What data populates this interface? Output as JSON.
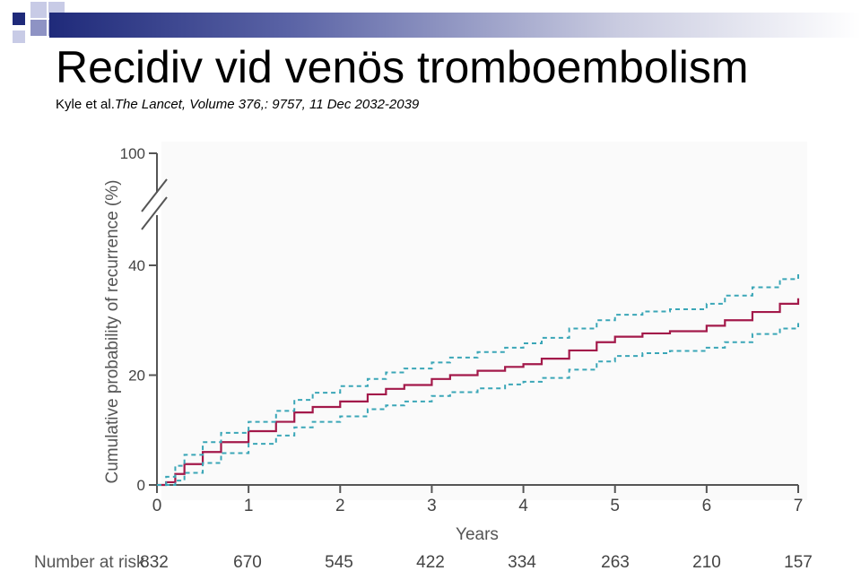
{
  "slide": {
    "title": "Recidiv vid venös tromboembolism",
    "citation_authors": "Kyle et al.",
    "citation_journal": "The Lancet, Volume 376,: 9757, 11 Dec  2032-2039"
  },
  "colors": {
    "estimate": "#a3194a",
    "ci": "#3aa6b7",
    "axis": "#555555",
    "header_dark": "#1f2a7a"
  },
  "chart_data": {
    "type": "line",
    "xlabel": "Years",
    "ylabel": "Cumulative probability of recurrence (%)",
    "xlim": [
      0,
      7
    ],
    "ylim": [
      0,
      40
    ],
    "y_axis_break": true,
    "x_ticks": [
      "0",
      "1",
      "2",
      "3",
      "4",
      "5",
      "6",
      "7"
    ],
    "y_ticks": [
      "0",
      "20",
      "40",
      "100"
    ],
    "risk_table": {
      "label": "Number at risk",
      "values": [
        "832",
        "670",
        "545",
        "422",
        "334",
        "263",
        "210",
        "157"
      ]
    },
    "series": [
      {
        "role": "estimate",
        "x": [
          0,
          0.1,
          0.2,
          0.3,
          0.5,
          0.7,
          1.0,
          1.3,
          1.5,
          1.7,
          2.0,
          2.3,
          2.5,
          2.7,
          3.0,
          3.2,
          3.5,
          3.8,
          4.0,
          4.2,
          4.5,
          4.8,
          5.0,
          5.3,
          5.6,
          6.0,
          6.2,
          6.5,
          6.8,
          7.0
        ],
        "y": [
          0,
          0.5,
          2,
          3.8,
          6,
          7.8,
          9.8,
          11.5,
          13.2,
          14.2,
          15.2,
          16.5,
          17.5,
          18.2,
          19.3,
          20,
          20.8,
          21.5,
          22,
          23,
          24.5,
          26,
          27,
          27.6,
          28,
          29,
          30,
          31.5,
          33,
          34
        ]
      },
      {
        "role": "ci-upper",
        "x": [
          0,
          0.1,
          0.2,
          0.3,
          0.5,
          0.7,
          1.0,
          1.3,
          1.5,
          1.7,
          2.0,
          2.3,
          2.5,
          2.7,
          3.0,
          3.2,
          3.5,
          3.8,
          4.0,
          4.2,
          4.5,
          4.8,
          5.0,
          5.3,
          5.6,
          6.0,
          6.2,
          6.5,
          6.8,
          7.0
        ],
        "y": [
          0,
          1.5,
          3.5,
          5.5,
          7.8,
          9.5,
          11.5,
          13.5,
          15.5,
          16.8,
          18,
          19.3,
          20.5,
          21.2,
          22.3,
          23.2,
          24.2,
          25,
          25.8,
          26.8,
          28.5,
          30,
          31,
          31.6,
          32,
          33,
          34.5,
          36,
          37.5,
          38.5
        ]
      },
      {
        "role": "ci-lower",
        "x": [
          0,
          0.1,
          0.2,
          0.3,
          0.5,
          0.7,
          1.0,
          1.3,
          1.5,
          1.7,
          2.0,
          2.3,
          2.5,
          2.7,
          3.0,
          3.2,
          3.5,
          3.8,
          4.0,
          4.2,
          4.5,
          4.8,
          5.0,
          5.3,
          5.6,
          6.0,
          6.2,
          6.5,
          6.8,
          7.0
        ],
        "y": [
          0,
          0,
          0.8,
          2.2,
          4,
          5.8,
          7.5,
          9,
          10.5,
          11.5,
          12.5,
          13.8,
          14.5,
          15.2,
          16.2,
          16.9,
          17.6,
          18.3,
          18.8,
          19.5,
          21,
          22.5,
          23.5,
          24,
          24.4,
          25,
          26,
          27.5,
          28.5,
          29.5
        ]
      }
    ]
  }
}
